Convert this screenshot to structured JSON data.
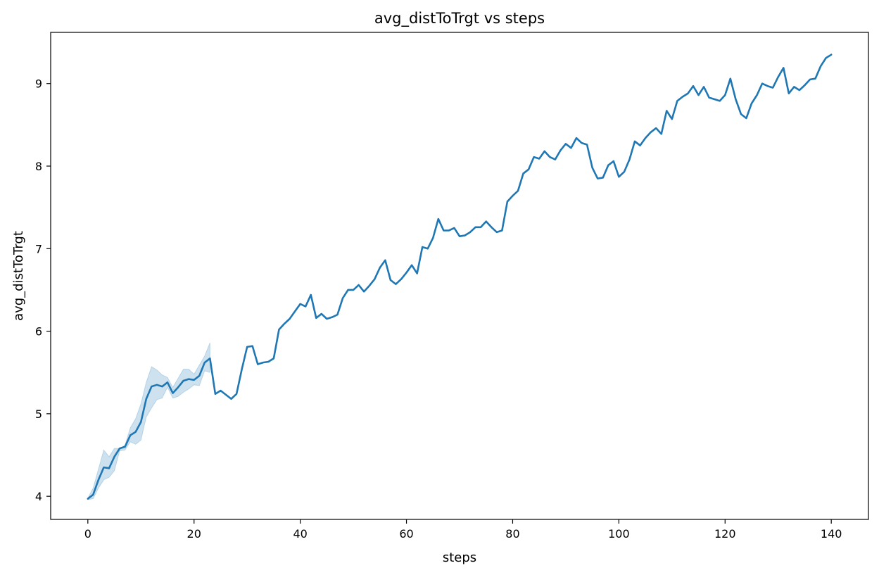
{
  "chart_data": {
    "type": "line",
    "title": "avg_distToTrgt vs steps",
    "xlabel": "steps",
    "ylabel": "avg_distToTrgt",
    "xlim": [
      -7,
      147
    ],
    "ylim": [
      3.72,
      9.62
    ],
    "xticks": [
      0,
      20,
      40,
      60,
      80,
      100,
      120,
      140
    ],
    "yticks": [
      4,
      5,
      6,
      7,
      8,
      9
    ],
    "grid": false,
    "line_color": "#1f77b4",
    "band_color": "#1f77b4",
    "series": [
      {
        "x": [
          0,
          1,
          2,
          3,
          4,
          5,
          6,
          7,
          8,
          9,
          10,
          11,
          12,
          13,
          14,
          15,
          16,
          17,
          18,
          19,
          20,
          21,
          22,
          23,
          24,
          25,
          26,
          27,
          28,
          29,
          30,
          31,
          32,
          33,
          34,
          35,
          36,
          37,
          38,
          39,
          40,
          41,
          42,
          43,
          44,
          45,
          46,
          47,
          48,
          49,
          50,
          51,
          52,
          53,
          54,
          55,
          56,
          57,
          58,
          59,
          60,
          61,
          62,
          63,
          64,
          65,
          66,
          67,
          68,
          69,
          70,
          71,
          72,
          73,
          74,
          75,
          76,
          77,
          78,
          79,
          80,
          81,
          82,
          83,
          84,
          85,
          86,
          87,
          88,
          89,
          90,
          91,
          92,
          93,
          94,
          95,
          96,
          97,
          98,
          99,
          100,
          101,
          102,
          103,
          104,
          105,
          106,
          107,
          108,
          109,
          110,
          111,
          112,
          113,
          114,
          115,
          116,
          117,
          118,
          119,
          120,
          121,
          122,
          123,
          124,
          125,
          126,
          127,
          128,
          129,
          130,
          131,
          132,
          133,
          134,
          135,
          136,
          137,
          138,
          139,
          140
        ],
        "y": [
          3.97,
          4.02,
          4.2,
          4.35,
          4.34,
          4.48,
          4.58,
          4.6,
          4.74,
          4.78,
          4.9,
          5.18,
          5.33,
          5.35,
          5.33,
          5.38,
          5.25,
          5.32,
          5.4,
          5.42,
          5.41,
          5.46,
          5.62,
          5.67,
          5.24,
          5.28,
          5.23,
          5.18,
          5.24,
          5.54,
          5.81,
          5.82,
          5.6,
          5.62,
          5.63,
          5.67,
          6.02,
          6.09,
          6.15,
          6.24,
          6.33,
          6.3,
          6.44,
          6.16,
          6.21,
          6.15,
          6.17,
          6.2,
          6.4,
          6.5,
          6.5,
          6.56,
          6.48,
          6.55,
          6.63,
          6.77,
          6.86,
          6.62,
          6.57,
          6.63,
          6.71,
          6.8,
          6.7,
          7.02,
          7.0,
          7.13,
          7.36,
          7.22,
          7.22,
          7.25,
          7.15,
          7.16,
          7.2,
          7.26,
          7.26,
          7.33,
          7.26,
          7.2,
          7.22,
          7.57,
          7.64,
          7.7,
          7.91,
          7.96,
          8.11,
          8.09,
          8.18,
          8.11,
          8.08,
          8.19,
          8.27,
          8.22,
          8.34,
          8.28,
          8.26,
          7.98,
          7.85,
          7.86,
          8.01,
          8.06,
          7.87,
          7.93,
          8.08,
          8.3,
          8.25,
          8.34,
          8.41,
          8.46,
          8.39,
          8.67,
          8.57,
          8.79,
          8.84,
          8.88,
          8.97,
          8.86,
          8.96,
          8.83,
          8.81,
          8.79,
          8.86,
          9.06,
          8.81,
          8.63,
          8.58,
          8.76,
          8.86,
          9.0,
          8.97,
          8.95,
          9.08,
          9.19,
          8.88,
          8.96,
          8.92,
          8.98,
          9.05,
          9.06,
          9.21,
          9.31,
          9.35
        ],
        "ci_x": [
          0,
          1,
          2,
          3,
          4,
          5,
          6,
          7,
          8,
          9,
          10,
          11,
          12,
          13,
          14,
          15,
          16,
          17,
          18,
          19,
          20,
          21,
          22,
          23
        ],
        "ci_low": [
          3.96,
          3.97,
          4.1,
          4.2,
          4.23,
          4.31,
          4.55,
          4.56,
          4.66,
          4.63,
          4.68,
          4.96,
          5.07,
          5.17,
          5.19,
          5.32,
          5.19,
          5.21,
          5.26,
          5.3,
          5.35,
          5.34,
          5.52,
          5.5
        ],
        "ci_high": [
          3.98,
          4.1,
          4.33,
          4.56,
          4.48,
          4.58,
          4.58,
          4.62,
          4.83,
          4.94,
          5.12,
          5.38,
          5.57,
          5.53,
          5.47,
          5.44,
          5.32,
          5.43,
          5.54,
          5.54,
          5.48,
          5.59,
          5.7,
          5.86
        ]
      }
    ]
  }
}
